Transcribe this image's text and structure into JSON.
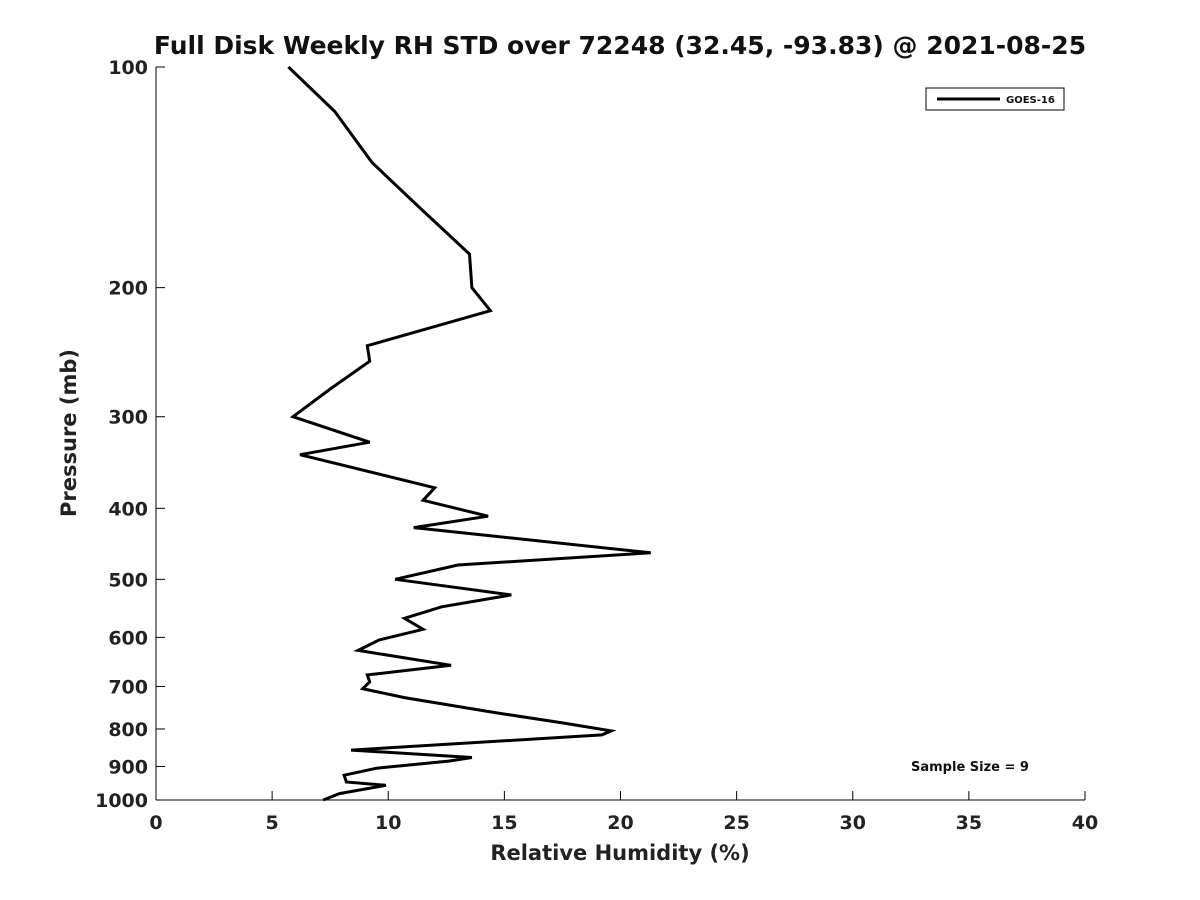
{
  "chart_data": {
    "type": "line",
    "title": "Full Disk Weekly RH STD over 72248 (32.45, -93.83) @ 2021-08-25",
    "xlabel": "Relative Humidity (%)",
    "ylabel": "Pressure (mb)",
    "xlim": [
      0,
      40
    ],
    "ylim": [
      100,
      1000
    ],
    "y_scale": "log",
    "y_inverted": true,
    "xticks": [
      0,
      5,
      10,
      15,
      20,
      25,
      30,
      35,
      40
    ],
    "yticks": [
      100,
      200,
      300,
      400,
      500,
      600,
      700,
      800,
      900,
      1000
    ],
    "grid": false,
    "legend_position": "top-right",
    "annotation": "Sample Size = 9",
    "series": [
      {
        "name": "GOES-16",
        "color": "#000000",
        "points": [
          [
            5.7,
            100
          ],
          [
            7.7,
            115
          ],
          [
            9.3,
            135
          ],
          [
            11.3,
            155
          ],
          [
            13.5,
            180
          ],
          [
            13.6,
            200
          ],
          [
            14.4,
            215
          ],
          [
            9.1,
            240
          ],
          [
            9.2,
            252
          ],
          [
            7.5,
            275
          ],
          [
            5.9,
            300
          ],
          [
            9.2,
            325
          ],
          [
            6.2,
            338
          ],
          [
            12.0,
            375
          ],
          [
            11.5,
            390
          ],
          [
            14.3,
            410
          ],
          [
            11.1,
            425
          ],
          [
            21.3,
            460
          ],
          [
            13.0,
            478
          ],
          [
            10.3,
            500
          ],
          [
            15.3,
            525
          ],
          [
            12.3,
            545
          ],
          [
            10.7,
            565
          ],
          [
            11.5,
            585
          ],
          [
            9.6,
            605
          ],
          [
            8.7,
            625
          ],
          [
            12.7,
            655
          ],
          [
            9.1,
            675
          ],
          [
            9.2,
            690
          ],
          [
            8.9,
            705
          ],
          [
            10.7,
            725
          ],
          [
            14.6,
            760
          ],
          [
            17.5,
            785
          ],
          [
            19.6,
            805
          ],
          [
            19.2,
            815
          ],
          [
            8.4,
            855
          ],
          [
            13.6,
            875
          ],
          [
            12.6,
            885
          ],
          [
            9.5,
            905
          ],
          [
            8.1,
            925
          ],
          [
            8.2,
            945
          ],
          [
            9.9,
            955
          ],
          [
            7.9,
            980
          ],
          [
            7.2,
            1000
          ]
        ]
      }
    ]
  }
}
